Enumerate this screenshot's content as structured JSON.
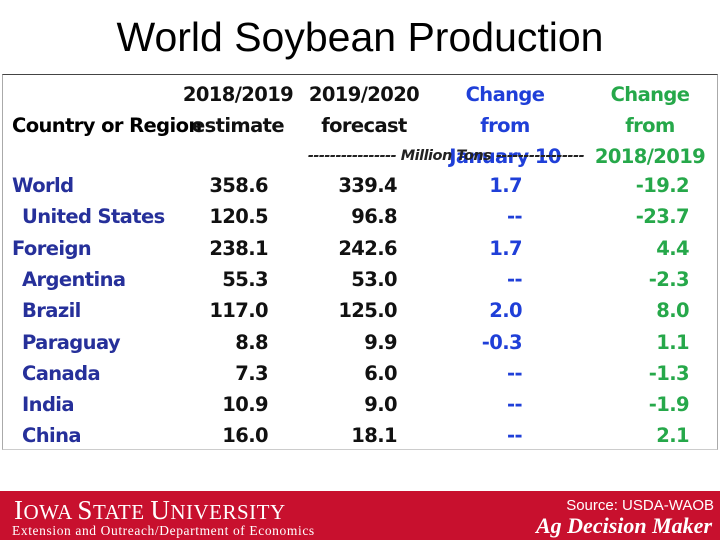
{
  "title": "World Soybean Production",
  "table": {
    "headers": {
      "country": "Country or Region",
      "col1": [
        "2018/2019",
        "estimate"
      ],
      "col2": [
        "2019/2020",
        "forecast"
      ],
      "col3": [
        "Change from",
        "January 10"
      ],
      "col4": [
        "Change from",
        "2018/2019"
      ]
    },
    "units": "---------------- Million Tons ----------------",
    "rows": [
      {
        "name": "World",
        "indent": false,
        "est": "358.6",
        "fcst": "339.4",
        "chg_jan": "1.7",
        "chg_prev": "-19.2"
      },
      {
        "name": "United States",
        "indent": true,
        "est": "120.5",
        "fcst": "96.8",
        "chg_jan": "--",
        "chg_prev": "-23.7"
      },
      {
        "name": "Foreign",
        "indent": false,
        "est": "238.1",
        "fcst": "242.6",
        "chg_jan": "1.7",
        "chg_prev": "4.4"
      },
      {
        "name": "Argentina",
        "indent": true,
        "est": "55.3",
        "fcst": "53.0",
        "chg_jan": "--",
        "chg_prev": "-2.3"
      },
      {
        "name": "Brazil",
        "indent": true,
        "est": "117.0",
        "fcst": "125.0",
        "chg_jan": "2.0",
        "chg_prev": "8.0"
      },
      {
        "name": "Paraguay",
        "indent": true,
        "est": "8.8",
        "fcst": "9.9",
        "chg_jan": "-0.3",
        "chg_prev": "1.1"
      },
      {
        "name": "Canada",
        "indent": true,
        "est": "7.3",
        "fcst": "6.0",
        "chg_jan": "--",
        "chg_prev": "-1.3"
      },
      {
        "name": "India",
        "indent": true,
        "est": "10.9",
        "fcst": "9.0",
        "chg_jan": "--",
        "chg_prev": "-1.9"
      },
      {
        "name": "China",
        "indent": true,
        "est": "16.0",
        "fcst": "18.1",
        "chg_jan": "--",
        "chg_prev": "2.1"
      }
    ]
  },
  "footer": {
    "university_first": "I",
    "university_rest1": "OWA ",
    "university_s": "S",
    "university_rest2": "TATE ",
    "university_u": "U",
    "university_rest3": "NIVERSITY",
    "extension": "Extension and Outreach/Department of Economics",
    "source": "Source: USDA-WAOB",
    "brand": "Ag Decision Maker"
  }
}
